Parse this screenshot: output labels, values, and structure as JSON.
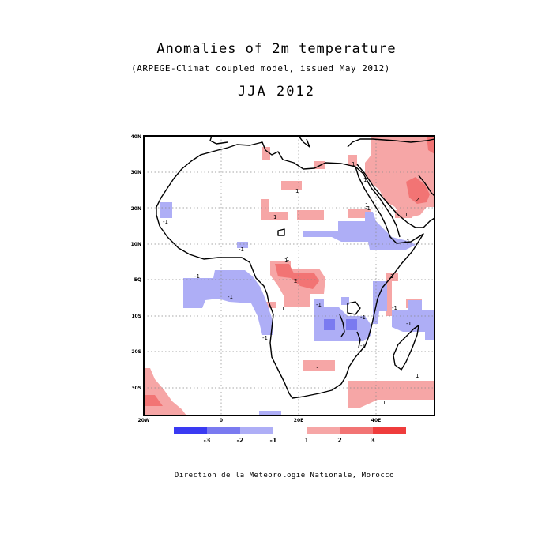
{
  "header": {
    "title": "Anomalies of 2m temperature",
    "subtitle": "(ARPEGE-Climat coupled model, issued May 2012)",
    "season": "JJA 2012"
  },
  "footer": {
    "credit": "Direction de la Meteorologie Nationale, Morocco"
  },
  "map": {
    "lat_labels": [
      "40N",
      "30N",
      "20N",
      "10N",
      "EQ",
      "10S",
      "20S",
      "30S"
    ],
    "lon_labels": [
      "20W",
      "0",
      "20E",
      "40E"
    ],
    "grid": "dotted",
    "colors": {
      "neg3": "#3a3af2",
      "neg2": "#7a7af0",
      "neg1": "#aeaef6",
      "pos1": "#f6a6a6",
      "pos2": "#f27474",
      "pos3": "#ef3c3c",
      "coast": "#000000"
    },
    "contour_labels": [
      "1",
      "1",
      "1",
      "1",
      "2",
      "1",
      "1",
      "1",
      "-1",
      "-1",
      "-1",
      "1",
      "1",
      "2",
      "1",
      "-1",
      "-1",
      "-1",
      "-1",
      "-1",
      "-1",
      "-1",
      "-1",
      "1",
      "1",
      "1",
      "-1"
    ]
  },
  "legend": {
    "labels": [
      "-3",
      "-2",
      "-1",
      "1",
      "2",
      "3"
    ],
    "colors": [
      "#3a3af2",
      "#7a7af0",
      "#aeaef6",
      "#f6a6a6",
      "#f27474",
      "#ef3c3c"
    ]
  }
}
